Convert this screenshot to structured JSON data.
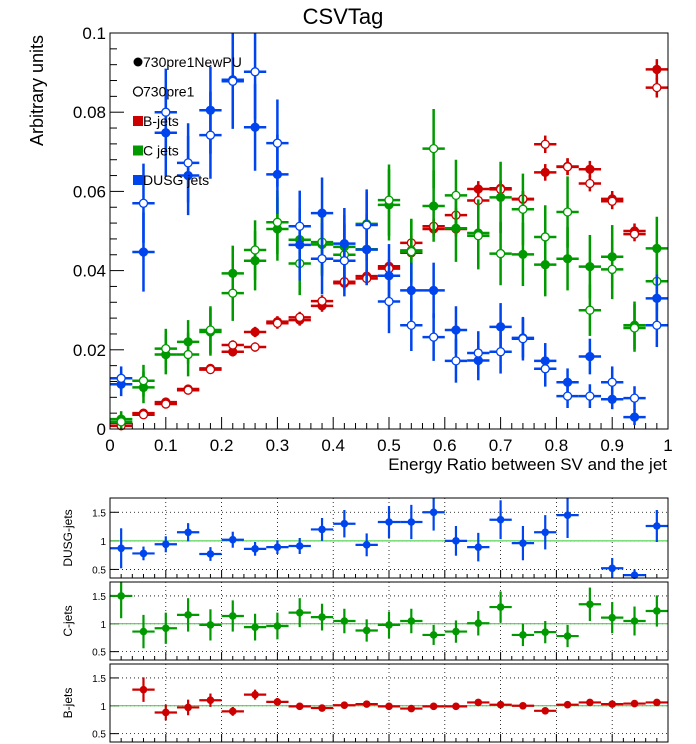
{
  "colors": {
    "b": "#cc0000",
    "c": "#009900",
    "dusg": "#0044ee",
    "ref": "#33cc33",
    "legend_new": "#000000"
  },
  "chart_data": [
    {
      "type": "scatter",
      "title": "CSVTag",
      "xlabel": "Energy Ratio between SV and the jet",
      "ylabel": "Arbitrary units",
      "xlim": [
        0,
        1
      ],
      "ylim": [
        0,
        0.1
      ],
      "xticks": [
        "0",
        "0.1",
        "0.2",
        "0.3",
        "0.4",
        "0.5",
        "0.6",
        "0.7",
        "0.8",
        "0.9",
        "1"
      ],
      "yticks": [
        "0",
        "0.02",
        "0.04",
        "0.06",
        "0.08",
        "0.1"
      ],
      "legend": {
        "placement": "top-left",
        "entries": [
          {
            "label": "730pre1NewPU",
            "marker": "filled-circle"
          },
          {
            "label": "730pre1",
            "marker": "open-circle"
          },
          {
            "label": "B-jets",
            "marker": "red-box"
          },
          {
            "label": "C jets",
            "marker": "green-box"
          },
          {
            "label": "DUSG jets",
            "marker": "blue-box"
          }
        ]
      },
      "x": [
        0.02,
        0.06,
        0.1,
        0.14,
        0.18,
        0.22,
        0.26,
        0.3,
        0.34,
        0.38,
        0.42,
        0.46,
        0.5,
        0.54,
        0.58,
        0.62,
        0.66,
        0.7,
        0.74,
        0.78,
        0.82,
        0.86,
        0.9,
        0.94,
        0.98
      ],
      "series": [
        {
          "name": "B-jets",
          "version": "730pre1NewPU",
          "color_key": "b",
          "filled": true,
          "values": [
            0.0015,
            0.004,
            0.0068,
            0.0101,
            0.0153,
            0.0195,
            0.0245,
            0.0271,
            0.0275,
            0.0311,
            0.0368,
            0.0386,
            0.0411,
            0.0445,
            0.0505,
            0.0505,
            0.0606,
            0.0608,
            0.058,
            0.0648,
            0.0663,
            0.0656,
            0.0581,
            0.05,
            0.0908
          ],
          "errors": [
            0.0005,
            0.0007,
            0.0008,
            0.0009,
            0.0011,
            0.0012,
            0.0013,
            0.0014,
            0.0014,
            0.0015,
            0.0016,
            0.0016,
            0.0017,
            0.0018,
            0.0019,
            0.0019,
            0.002,
            0.002,
            0.002,
            0.0021,
            0.0021,
            0.0021,
            0.002,
            0.0019,
            0.0026
          ]
        },
        {
          "name": "B-jets",
          "version": "730pre1",
          "color_key": "b",
          "filled": false,
          "values": [
            0.0008,
            0.0036,
            0.0063,
            0.0098,
            0.015,
            0.0212,
            0.0207,
            0.0267,
            0.0282,
            0.0323,
            0.0372,
            0.038,
            0.0405,
            0.047,
            0.0512,
            0.054,
            0.0577,
            0.0605,
            0.0581,
            0.0719,
            0.0662,
            0.062,
            0.0575,
            0.0492,
            0.0862
          ],
          "errors": [
            0.0004,
            0.0007,
            0.0008,
            0.0009,
            0.0011,
            0.0012,
            0.0012,
            0.0014,
            0.0014,
            0.0015,
            0.0016,
            0.0016,
            0.0017,
            0.0018,
            0.0019,
            0.0019,
            0.002,
            0.002,
            0.002,
            0.0022,
            0.0021,
            0.002,
            0.002,
            0.0018,
            0.0025
          ]
        },
        {
          "name": "C jets",
          "version": "730pre1NewPU",
          "color_key": "c",
          "filled": true,
          "values": [
            0.0025,
            0.0105,
            0.0188,
            0.022,
            0.0245,
            0.0393,
            0.0425,
            0.0505,
            0.0478,
            0.0466,
            0.046,
            0.0454,
            0.0566,
            0.0451,
            0.0563,
            0.0507,
            0.0495,
            0.0585,
            0.0441,
            0.0415,
            0.043,
            0.041,
            0.0435,
            0.0262,
            0.0456
          ],
          "errors": [
            0.002,
            0.004,
            0.005,
            0.0055,
            0.006,
            0.007,
            0.0075,
            0.008,
            0.008,
            0.008,
            0.008,
            0.008,
            0.009,
            0.008,
            0.009,
            0.0085,
            0.0085,
            0.009,
            0.008,
            0.008,
            0.008,
            0.008,
            0.008,
            0.006,
            0.008
          ]
        },
        {
          "name": "C jets",
          "version": "730pre1",
          "color_key": "c",
          "filled": false,
          "values": [
            0.0018,
            0.0122,
            0.0203,
            0.0188,
            0.025,
            0.0343,
            0.0452,
            0.0522,
            0.0418,
            0.0472,
            0.044,
            0.0518,
            0.0578,
            0.0448,
            0.0708,
            0.059,
            0.0488,
            0.0443,
            0.0555,
            0.0485,
            0.0548,
            0.03,
            0.0403,
            0.0255,
            0.0373
          ],
          "errors": [
            0.002,
            0.004,
            0.005,
            0.0055,
            0.006,
            0.007,
            0.0075,
            0.008,
            0.008,
            0.008,
            0.008,
            0.008,
            0.009,
            0.008,
            0.01,
            0.009,
            0.0085,
            0.008,
            0.009,
            0.008,
            0.009,
            0.0065,
            0.0075,
            0.006,
            0.0075
          ]
        },
        {
          "name": "DUSG jets",
          "version": "730pre1NewPU",
          "color_key": "dusg",
          "filled": true,
          "values": [
            0.0113,
            0.0447,
            0.0748,
            0.064,
            0.0805,
            0.0882,
            0.0762,
            0.0643,
            0.0465,
            0.0545,
            0.0468,
            0.0453,
            0.0387,
            0.035,
            0.035,
            0.025,
            0.0173,
            0.0258,
            0.023,
            0.0172,
            0.0118,
            0.0183,
            0.0075,
            0.003,
            0.033
          ],
          "errors": [
            0.003,
            0.01,
            0.011,
            0.01,
            0.011,
            0.012,
            0.011,
            0.01,
            0.009,
            0.009,
            0.009,
            0.009,
            0.008,
            0.007,
            0.007,
            0.006,
            0.005,
            0.006,
            0.005,
            0.0045,
            0.0035,
            0.0045,
            0.0025,
            0.002,
            0.006
          ]
        },
        {
          "name": "DUSG jets",
          "version": "730pre1",
          "color_key": "dusg",
          "filled": false,
          "values": [
            0.0128,
            0.057,
            0.08,
            0.0672,
            0.0742,
            0.0878,
            0.0902,
            0.0722,
            0.0512,
            0.043,
            0.0425,
            0.0515,
            0.0322,
            0.0262,
            0.0232,
            0.0172,
            0.0192,
            0.0195,
            0.0228,
            0.0152,
            0.0083,
            0.0083,
            0.0118,
            0.0078,
            0.0262
          ],
          "errors": [
            0.003,
            0.01,
            0.011,
            0.01,
            0.011,
            0.012,
            0.012,
            0.011,
            0.009,
            0.009,
            0.009,
            0.009,
            0.008,
            0.0065,
            0.006,
            0.0055,
            0.0055,
            0.0055,
            0.0055,
            0.0045,
            0.003,
            0.003,
            0.004,
            0.003,
            0.0055
          ]
        }
      ]
    },
    {
      "type": "scatter",
      "ylabel": "DUSG-jets",
      "xlim": [
        0,
        1
      ],
      "ylim": [
        0.35,
        1.75
      ],
      "yticks": [
        "0.5",
        "1",
        "1.5"
      ],
      "grid": true,
      "reference_line": 1,
      "color_key": "dusg",
      "x": [
        0.02,
        0.06,
        0.1,
        0.14,
        0.18,
        0.22,
        0.26,
        0.3,
        0.34,
        0.38,
        0.42,
        0.46,
        0.5,
        0.54,
        0.58,
        0.62,
        0.66,
        0.7,
        0.74,
        0.78,
        0.82,
        0.9,
        0.94,
        0.98
      ],
      "values": [
        0.87,
        0.78,
        0.94,
        1.15,
        0.77,
        1.02,
        0.86,
        0.89,
        0.91,
        1.2,
        1.3,
        0.93,
        1.33,
        1.33,
        1.5,
        1.0,
        0.89,
        1.37,
        0.96,
        1.15,
        1.45,
        0.52,
        0.4,
        1.26
      ],
      "errors": [
        0.35,
        0.12,
        0.14,
        0.16,
        0.12,
        0.14,
        0.12,
        0.12,
        0.14,
        0.2,
        0.24,
        0.2,
        0.28,
        0.3,
        0.32,
        0.26,
        0.25,
        0.34,
        0.3,
        0.3,
        0.4,
        0.18,
        0.1,
        0.28
      ]
    },
    {
      "type": "scatter",
      "ylabel": "C-jets",
      "xlim": [
        0,
        1
      ],
      "ylim": [
        0.35,
        1.75
      ],
      "yticks": [
        "0.5",
        "1",
        "1.5"
      ],
      "grid": true,
      "reference_line": 1,
      "color_key": "c",
      "x": [
        0.02,
        0.06,
        0.1,
        0.14,
        0.18,
        0.22,
        0.26,
        0.3,
        0.34,
        0.38,
        0.42,
        0.46,
        0.5,
        0.54,
        0.58,
        0.62,
        0.66,
        0.7,
        0.74,
        0.78,
        0.82,
        0.86,
        0.9,
        0.94,
        0.98
      ],
      "values": [
        1.5,
        0.86,
        0.92,
        1.16,
        0.98,
        1.14,
        0.94,
        0.96,
        1.2,
        1.12,
        1.05,
        0.88,
        0.98,
        1.05,
        0.8,
        0.86,
        1.01,
        1.3,
        0.8,
        0.85,
        0.78,
        1.35,
        1.11,
        1.05,
        1.23
      ],
      "errors": [
        0.4,
        0.3,
        0.28,
        0.3,
        0.28,
        0.28,
        0.24,
        0.24,
        0.26,
        0.24,
        0.22,
        0.2,
        0.24,
        0.22,
        0.18,
        0.2,
        0.22,
        0.28,
        0.2,
        0.2,
        0.2,
        0.3,
        0.28,
        0.26,
        0.28
      ]
    },
    {
      "type": "scatter",
      "ylabel": "B-jets",
      "xlim": [
        0,
        1
      ],
      "ylim": [
        0.35,
        1.75
      ],
      "yticks": [
        "0.5",
        "1",
        "1.5"
      ],
      "grid": true,
      "reference_line": 1,
      "color_key": "b",
      "x": [
        0.06,
        0.1,
        0.14,
        0.18,
        0.22,
        0.26,
        0.3,
        0.34,
        0.38,
        0.42,
        0.46,
        0.5,
        0.54,
        0.58,
        0.62,
        0.66,
        0.7,
        0.74,
        0.78,
        0.82,
        0.86,
        0.9,
        0.94,
        0.98
      ],
      "values": [
        1.29,
        0.88,
        0.97,
        1.1,
        0.9,
        1.2,
        1.07,
        0.99,
        0.96,
        1.01,
        1.03,
        0.99,
        0.95,
        0.99,
        0.99,
        1.06,
        1.02,
        1.0,
        0.91,
        1.02,
        1.06,
        1.03,
        1.04,
        1.06
      ],
      "errors": [
        0.22,
        0.14,
        0.14,
        0.12,
        0.08,
        0.09,
        0.07,
        0.06,
        0.06,
        0.05,
        0.05,
        0.05,
        0.05,
        0.04,
        0.04,
        0.04,
        0.04,
        0.04,
        0.04,
        0.04,
        0.04,
        0.04,
        0.04,
        0.04
      ]
    }
  ]
}
